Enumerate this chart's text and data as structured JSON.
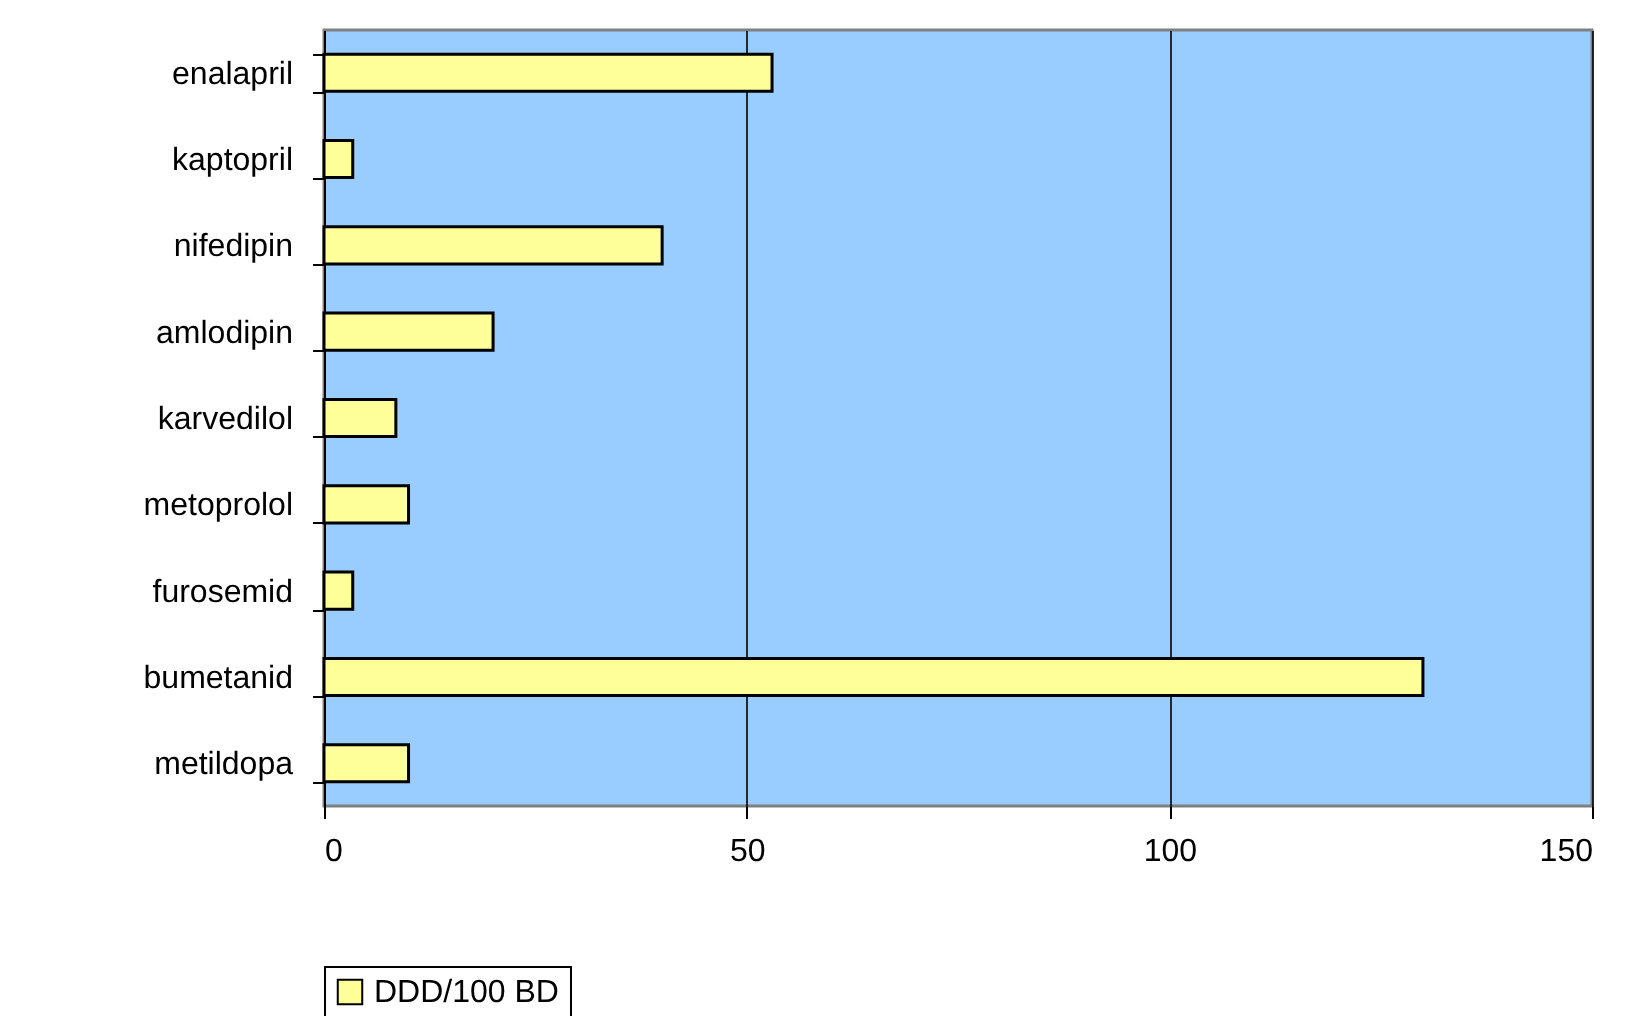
{
  "chart_data": {
    "type": "bar",
    "orientation": "horizontal",
    "categories": [
      "enalapril",
      "kaptopril",
      "nifedipin",
      "amlodipin",
      "karvedilol",
      "metoprolol",
      "furosemid",
      "bumetanid",
      "metildopa"
    ],
    "series": [
      {
        "name": "DDD/100 BD",
        "color": "#ffff99",
        "values": [
          53,
          3.4,
          40,
          20,
          8.5,
          10,
          3.4,
          130,
          10
        ]
      }
    ],
    "xlim": [
      0,
      150
    ],
    "xticks": [
      0,
      50,
      100,
      150
    ],
    "grid": "x",
    "legend": "bottom"
  }
}
